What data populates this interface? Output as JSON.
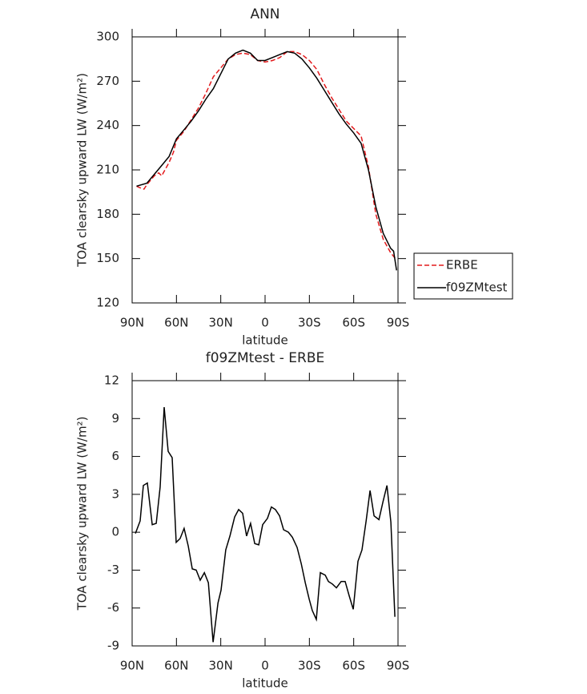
{
  "chart_data": [
    {
      "type": "line",
      "title": "ANN",
      "xlabel": "latitude",
      "ylabel": "TOA clearsky upward LW (W/m²)",
      "xlim": [
        90,
        -90
      ],
      "xticks": [
        {
          "value": 90,
          "label": "90N"
        },
        {
          "value": 60,
          "label": "60N"
        },
        {
          "value": 30,
          "label": "30N"
        },
        0,
        {
          "value": -30,
          "label": "30S"
        },
        {
          "value": -60,
          "label": "60S"
        },
        {
          "value": -90,
          "label": "90S"
        }
      ],
      "ylim": [
        120,
        300
      ],
      "yticks": [
        120,
        150,
        180,
        210,
        240,
        270,
        300
      ],
      "legend": "right",
      "series": [
        {
          "name": "ERBE",
          "color": "#e31a1c",
          "line_style": "dashed",
          "x": [
            87,
            85,
            82,
            80,
            75,
            72,
            70,
            65,
            62,
            60,
            55,
            50,
            45,
            40,
            35,
            30,
            25,
            20,
            15,
            10,
            5,
            0,
            -5,
            -10,
            -15,
            -20,
            -25,
            -30,
            -35,
            -40,
            -45,
            -50,
            -55,
            -60,
            -65,
            -70,
            -75,
            -80,
            -85,
            -89
          ],
          "values": [
            199,
            198,
            197,
            200,
            206,
            208,
            206,
            215,
            222,
            230,
            236,
            244,
            252,
            262,
            273,
            279,
            285,
            288,
            289,
            288,
            284,
            283,
            284,
            286,
            290,
            290,
            288,
            284,
            278,
            268,
            259,
            251,
            243,
            238,
            233,
            212,
            180,
            163,
            154,
            149
          ]
        },
        {
          "name": "f09ZMtest",
          "color": "#000000",
          "line_style": "solid",
          "x": [
            87,
            80,
            75,
            70,
            65,
            60,
            55,
            50,
            45,
            40,
            35,
            30,
            25,
            20,
            15,
            10,
            5,
            0,
            -5,
            -10,
            -15,
            -20,
            -25,
            -30,
            -35,
            -40,
            -45,
            -50,
            -55,
            -60,
            -65,
            -70,
            -75,
            -80,
            -85,
            -87,
            -89
          ],
          "values": [
            199,
            201,
            207,
            213,
            219,
            231,
            237,
            243,
            250,
            258,
            265,
            275,
            285,
            289,
            291,
            289,
            284,
            284,
            286,
            288,
            290,
            289,
            285,
            279,
            272,
            264,
            256,
            248,
            241,
            235,
            228,
            210,
            185,
            167,
            157,
            155,
            142
          ]
        }
      ]
    },
    {
      "type": "line",
      "title": "f09ZMtest - ERBE",
      "xlabel": "latitude",
      "ylabel": "TOA clearsky upward LW (W/m²)",
      "xlim": [
        90,
        -90
      ],
      "xticks": [
        {
          "value": 90,
          "label": "90N"
        },
        {
          "value": 60,
          "label": "60N"
        },
        {
          "value": 30,
          "label": "30N"
        },
        0,
        {
          "value": -30,
          "label": "30S"
        },
        {
          "value": -60,
          "label": "60S"
        },
        {
          "value": -90,
          "label": "90S"
        }
      ],
      "ylim": [
        -9,
        12
      ],
      "yticks": [
        -9,
        -6,
        -3,
        0,
        3,
        6,
        9,
        12
      ],
      "color": "#000000",
      "x": [
        87.8,
        84.6,
        82.4,
        79.7,
        76.4,
        73.7,
        71,
        68.3,
        65.6,
        62.9,
        60.2,
        57.5,
        54.8,
        52,
        49.3,
        46.6,
        43.9,
        41.1,
        38.4,
        35.2,
        31.9,
        29.8,
        26.6,
        23.8,
        20.6,
        17.9,
        15.2,
        12.5,
        9.8,
        7,
        4.3,
        1.6,
        -1.6,
        -4.3,
        -7,
        -9.8,
        -12.5,
        -15.8,
        -18.5,
        -21.7,
        -24.5,
        -27.2,
        -29.9,
        -32,
        -34.7,
        -37.4,
        -40.7,
        -42.9,
        -45.6,
        -48.3,
        -51.5,
        -54.2,
        -56.9,
        -59.7,
        -62.9,
        -65.6,
        -68.4,
        -71.1,
        -73.8,
        -77.1,
        -79.8,
        -82.5,
        -85.2,
        -87.9
      ],
      "values": [
        -0.1,
        0.9,
        3.7,
        3.9,
        0.6,
        0.7,
        3.6,
        9.9,
        6.4,
        5.9,
        -0.8,
        -0.5,
        0.3,
        -1.1,
        -2.9,
        -3,
        -3.8,
        -3.2,
        -4,
        -8.7,
        -5.6,
        -4.6,
        -1.4,
        -0.3,
        1.2,
        1.8,
        1.5,
        -0.3,
        0.7,
        -0.9,
        -1,
        0.6,
        1.1,
        2,
        1.8,
        1.3,
        0.2,
        0,
        -0.4,
        -1.2,
        -2.5,
        -4,
        -5.3,
        -6.2,
        -6.9,
        -3.2,
        -3.4,
        -3.9,
        -4.1,
        -4.4,
        -3.9,
        -3.9,
        -5,
        -6.1,
        -2.3,
        -1.4,
        0.9,
        3.3,
        1.3,
        1,
        2.4,
        3.7,
        0.8,
        -6.7
      ]
    }
  ]
}
